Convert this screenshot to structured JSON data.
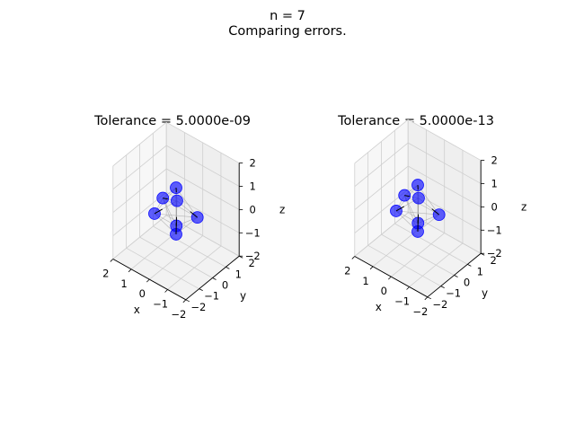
{
  "figure": {
    "title": "n = 7",
    "subtitle": "Comparing errors."
  },
  "chart_data": [
    {
      "type": "scatter3d",
      "title": "Tolerance = 5.0000e-09",
      "xlabel": "x",
      "ylabel": "y",
      "zlabel": "z",
      "xlim": [
        -2,
        2
      ],
      "ylim": [
        -2,
        2
      ],
      "zlim": [
        -2,
        2
      ],
      "xticks": [
        "−2",
        "−1",
        "0",
        "1",
        "2"
      ],
      "yticks": [
        "−2",
        "−1",
        "0",
        "1",
        "2"
      ],
      "zticks": [
        "−2",
        "−1",
        "0",
        "1",
        "2"
      ],
      "grid": true,
      "marker_color": "#0000ff",
      "points": [
        {
          "x": 0.0,
          "y": 0.0,
          "z": 1.0
        },
        {
          "x": 0.95,
          "y": 0.3,
          "z": 0.0
        },
        {
          "x": 0.6,
          "y": -0.8,
          "z": 0.0
        },
        {
          "x": -0.6,
          "y": -0.8,
          "z": 0.0
        },
        {
          "x": -0.95,
          "y": 0.3,
          "z": 0.0
        },
        {
          "x": 0.0,
          "y": 0.0,
          "z": -1.0
        },
        {
          "x": 0.1,
          "y": 0.2,
          "z": 0.3
        }
      ]
    },
    {
      "type": "scatter3d",
      "title": "Tolerance = 5.0000e-13",
      "xlabel": "x",
      "ylabel": "y",
      "zlabel": "z",
      "xlim": [
        -2,
        2
      ],
      "ylim": [
        -2,
        2
      ],
      "zlim": [
        -2,
        2
      ],
      "xticks": [
        "−2",
        "−1",
        "0",
        "1",
        "2"
      ],
      "yticks": [
        "−2",
        "−1",
        "0",
        "1",
        "2"
      ],
      "zticks": [
        "−2",
        "−1",
        "0",
        "1",
        "2"
      ],
      "grid": true,
      "marker_color": "#0000ff",
      "points": [
        {
          "x": 0.0,
          "y": 0.0,
          "z": 1.0
        },
        {
          "x": 0.95,
          "y": 0.3,
          "z": 0.0
        },
        {
          "x": 0.6,
          "y": -0.8,
          "z": 0.0
        },
        {
          "x": -0.6,
          "y": -0.8,
          "z": 0.0
        },
        {
          "x": -0.95,
          "y": 0.3,
          "z": 0.0
        },
        {
          "x": 0.0,
          "y": 0.0,
          "z": -1.0
        },
        {
          "x": 0.1,
          "y": 0.2,
          "z": 0.3
        }
      ]
    }
  ]
}
